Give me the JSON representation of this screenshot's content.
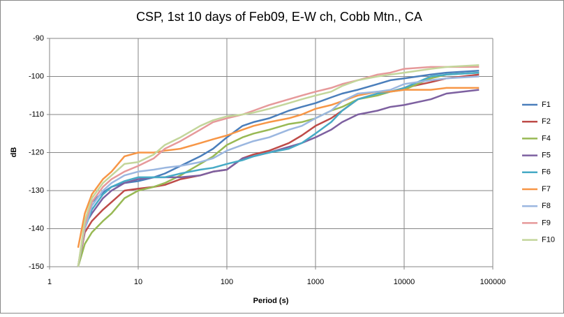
{
  "chart_data": {
    "type": "line",
    "title": "CSP, 1st 10 days of Feb09, E-W ch, Cobb Mtn., CA",
    "xlabel": "Period  (s)",
    "ylabel": "dB",
    "xscale": "log",
    "grid": true,
    "legend": "right",
    "xlim": [
      1,
      100000
    ],
    "xticks": [
      1,
      10,
      100,
      1000,
      10000,
      100000
    ],
    "ylim": [
      -150,
      -90
    ],
    "yticks": [
      -150,
      -140,
      -130,
      -120,
      -110,
      -100,
      -90
    ],
    "x": [
      2.1,
      2.5,
      3,
      4,
      5,
      7,
      10,
      15,
      20,
      30,
      50,
      70,
      100,
      150,
      200,
      300,
      500,
      700,
      1000,
      1500,
      2000,
      3000,
      5000,
      7000,
      10000,
      20000,
      30000,
      70000
    ],
    "series": [
      {
        "name": "F1",
        "color": "#4a7ebb",
        "values": [
          -150,
          -140,
          -133,
          -130.5,
          -129,
          -128,
          -127.5,
          -126.5,
          -125.5,
          -123.5,
          -121,
          -119,
          -116,
          -113,
          -112,
          -111,
          -109,
          -108,
          -107,
          -105.5,
          -104.5,
          -103.5,
          -102,
          -101,
          -100.5,
          -99.5,
          -99,
          -98.5
        ]
      },
      {
        "name": "F2",
        "color": "#be4b48",
        "values": [
          -150,
          -141,
          -138,
          -135,
          -133,
          -130,
          -129.5,
          -129,
          -128.5,
          -127,
          -126,
          -125,
          -124.5,
          -121.5,
          -120.5,
          -119.5,
          -117.5,
          -115.5,
          -113,
          -111,
          -109,
          -106,
          -104.5,
          -104,
          -103,
          -101.5,
          -100.5,
          -99.5
        ]
      },
      {
        "name": "F4",
        "color": "#98b954",
        "values": [
          -150,
          -144,
          -141,
          -138,
          -136,
          -132,
          -130,
          -129,
          -128,
          -126,
          -123,
          -121,
          -118,
          -116,
          -115,
          -114,
          -112.5,
          -112,
          -111,
          -109,
          -108,
          -106,
          -105,
          -104,
          -103.5,
          -100.5,
          -99.5,
          -99
        ]
      },
      {
        "name": "F5",
        "color": "#7d60a0",
        "values": [
          -150,
          -139,
          -136,
          -132,
          -130,
          -128,
          -127,
          -126.5,
          -126.5,
          -126.5,
          -126,
          -125,
          -124.5,
          -121.5,
          -121,
          -120,
          -118.5,
          -117.5,
          -116,
          -114,
          -112,
          -110,
          -109,
          -108,
          -107.5,
          -106,
          -104.5,
          -103.5
        ]
      },
      {
        "name": "F6",
        "color": "#46aac5",
        "values": [
          -150,
          -140,
          -135,
          -131,
          -129,
          -127.5,
          -126.5,
          -126.5,
          -126.5,
          -125.5,
          -124.5,
          -124,
          -123,
          -122,
          -121,
          -120,
          -119,
          -117.5,
          -115,
          -112,
          -109,
          -106,
          -104.5,
          -104,
          -103,
          -100,
          -99.5,
          -99
        ]
      },
      {
        "name": "F7",
        "color": "#f79646",
        "values": [
          -145,
          -136,
          -131,
          -127,
          -125,
          -121,
          -120,
          -120,
          -119.5,
          -119,
          -117.5,
          -116.5,
          -115.5,
          -114,
          -113,
          -112,
          -111,
          -110,
          -108.5,
          -107.5,
          -106.5,
          -105,
          -104,
          -104,
          -103.5,
          -103.5,
          -103,
          -103
        ]
      },
      {
        "name": "F8",
        "color": "#9bb7e0",
        "values": [
          -150,
          -140,
          -134,
          -130,
          -128,
          -126,
          -125,
          -124.5,
          -124,
          -123.5,
          -122.5,
          -121.5,
          -119.5,
          -118,
          -117,
          -116,
          -114,
          -113,
          -111,
          -109,
          -106.5,
          -104.5,
          -104,
          -103.5,
          -102,
          -101,
          -100.5,
          -100
        ]
      },
      {
        "name": "F9",
        "color": "#e6999a",
        "values": [
          -150,
          -139,
          -133,
          -129,
          -127,
          -125,
          -123.5,
          -121.5,
          -119,
          -117,
          -114,
          -112,
          -111,
          -110,
          -109,
          -107.5,
          -106,
          -105,
          -104,
          -103,
          -102,
          -101,
          -99.5,
          -99,
          -98,
          -97.5,
          -97.5,
          -97.5
        ]
      },
      {
        "name": "F10",
        "color": "#c3d69b",
        "values": [
          -150,
          -138,
          -132,
          -128,
          -126,
          -123,
          -122.5,
          -120.5,
          -118,
          -116,
          -113,
          -111.5,
          -110.5,
          -110,
          -109.5,
          -108.5,
          -107,
          -106,
          -105,
          -104,
          -102.5,
          -101,
          -100,
          -99.5,
          -99,
          -98,
          -97.5,
          -97
        ]
      }
    ]
  }
}
